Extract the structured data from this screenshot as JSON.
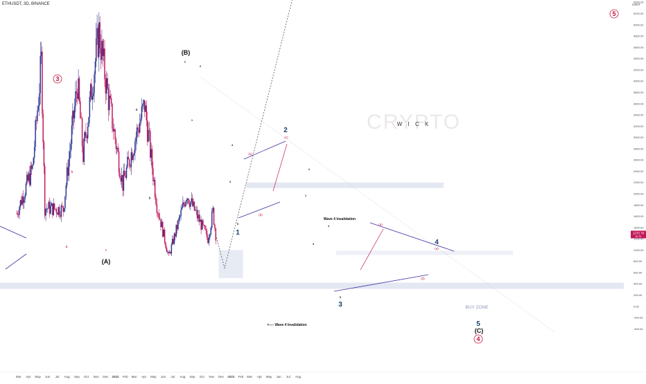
{
  "header": {
    "symbol": "ETHUSDT, 3D, BINANCE"
  },
  "watermark": {
    "line1": "CRYPTO",
    "line2": "W I C K"
  },
  "price_axis": {
    "unit": "USDT",
    "ticks": [
      "5800.00",
      "5600.00",
      "5400.00",
      "5200.00",
      "5000.00",
      "4800.00",
      "4600.00",
      "4400.00",
      "4200.00",
      "4000.00",
      "3800.00",
      "3600.00",
      "3400.00",
      "3200.00",
      "3000.00",
      "2800.00",
      "2600.00",
      "2400.00",
      "2200.00",
      "2000.00",
      "1800.00",
      "1600.00",
      "1400.00",
      "1200.00",
      "1000.00",
      "800.00",
      "600.00",
      "400.00",
      "200.00",
      "0.00",
      "-200.00",
      "-400.00"
    ],
    "last_price": "1270.78",
    "countdown": "2d 7h"
  },
  "time_axis": {
    "ticks": [
      "Mar",
      "Apr",
      "May",
      "Jun",
      "Jul",
      "Aug",
      "Sep",
      "Oct",
      "Nov",
      "Dec",
      "2022",
      "Feb",
      "Mar",
      "Apr",
      "May",
      "Jun",
      "Jul",
      "Aug",
      "Sep",
      "Oct",
      "Nov",
      "Dec",
      "2023",
      "Feb",
      "Mar",
      "Apr",
      "May",
      "Jun",
      "Jul",
      "Aug"
    ]
  },
  "annotations": {
    "wave_3_circled": "3",
    "wave_5_circled": "5",
    "wave_4_circled": "4",
    "A": "(A)",
    "B": "(B)",
    "C": "(C)",
    "w1": "1",
    "w2": "2",
    "w3": "3",
    "w4": "4",
    "w5": "5",
    "sub_a": "a",
    "sub_b": "b",
    "sub_c": "c",
    "sub_1": "1",
    "sub_2": "2",
    "sub_3": "3",
    "sub_4": "4",
    "sub_5": "5",
    "tri_a": "(a)",
    "tri_b": "(b)",
    "tri_c": "(c)",
    "tri_d": "(d)",
    "tri_e": "(e)",
    "invalidation_upper": "Wave 4 Invalidation",
    "invalidation_lower": "<---- Wave 4 Invalidation",
    "buy_zone": "BUY ZONE"
  },
  "colors": {
    "bull": "#2a3890",
    "bear": "#c2185b",
    "wave_red": "#c0143c",
    "wave_navy": "#1c3f6e",
    "line_purple": "#3c2ca0",
    "zone": "#e3e8f2"
  },
  "chart_data": {
    "type": "candlestick",
    "y_range": [
      -500,
      6000
    ],
    "close_path": [
      {
        "date": "2021-02-23",
        "price": 1650
      },
      {
        "date": "2021-04-14",
        "price": 2450
      },
      {
        "date": "2021-05-12",
        "price": 4350
      },
      {
        "date": "2021-05-23",
        "price": 1750
      },
      {
        "date": "2021-07-20",
        "price": 1720
      },
      {
        "date": "2021-09-03",
        "price": 3970
      },
      {
        "date": "2021-09-21",
        "price": 2680
      },
      {
        "date": "2021-11-10",
        "price": 4870
      },
      {
        "date": "2021-12-04",
        "price": 3900
      },
      {
        "date": "2022-01-24",
        "price": 2170
      },
      {
        "date": "2022-04-03",
        "price": 3580
      },
      {
        "date": "2022-05-12",
        "price": 1800
      },
      {
        "date": "2022-06-18",
        "price": 880
      },
      {
        "date": "2022-08-14",
        "price": 2000
      },
      {
        "date": "2022-10-20",
        "price": 1200
      },
      {
        "date": "2022-11-05",
        "price": 1680
      },
      {
        "date": "2022-11-14",
        "price": 1270
      }
    ],
    "projection": [
      {
        "date": "2022-11-14",
        "price": 1270
      },
      {
        "date": "2022-12-12",
        "price": 680
      },
      {
        "date": "2023-07-25",
        "price": 5700
      }
    ],
    "invalidation_levels": [
      2150,
      360
    ],
    "buy_zone": {
      "from": "2022-11-10",
      "to": "2023-01-26",
      "low": 500,
      "high": 1000
    }
  }
}
